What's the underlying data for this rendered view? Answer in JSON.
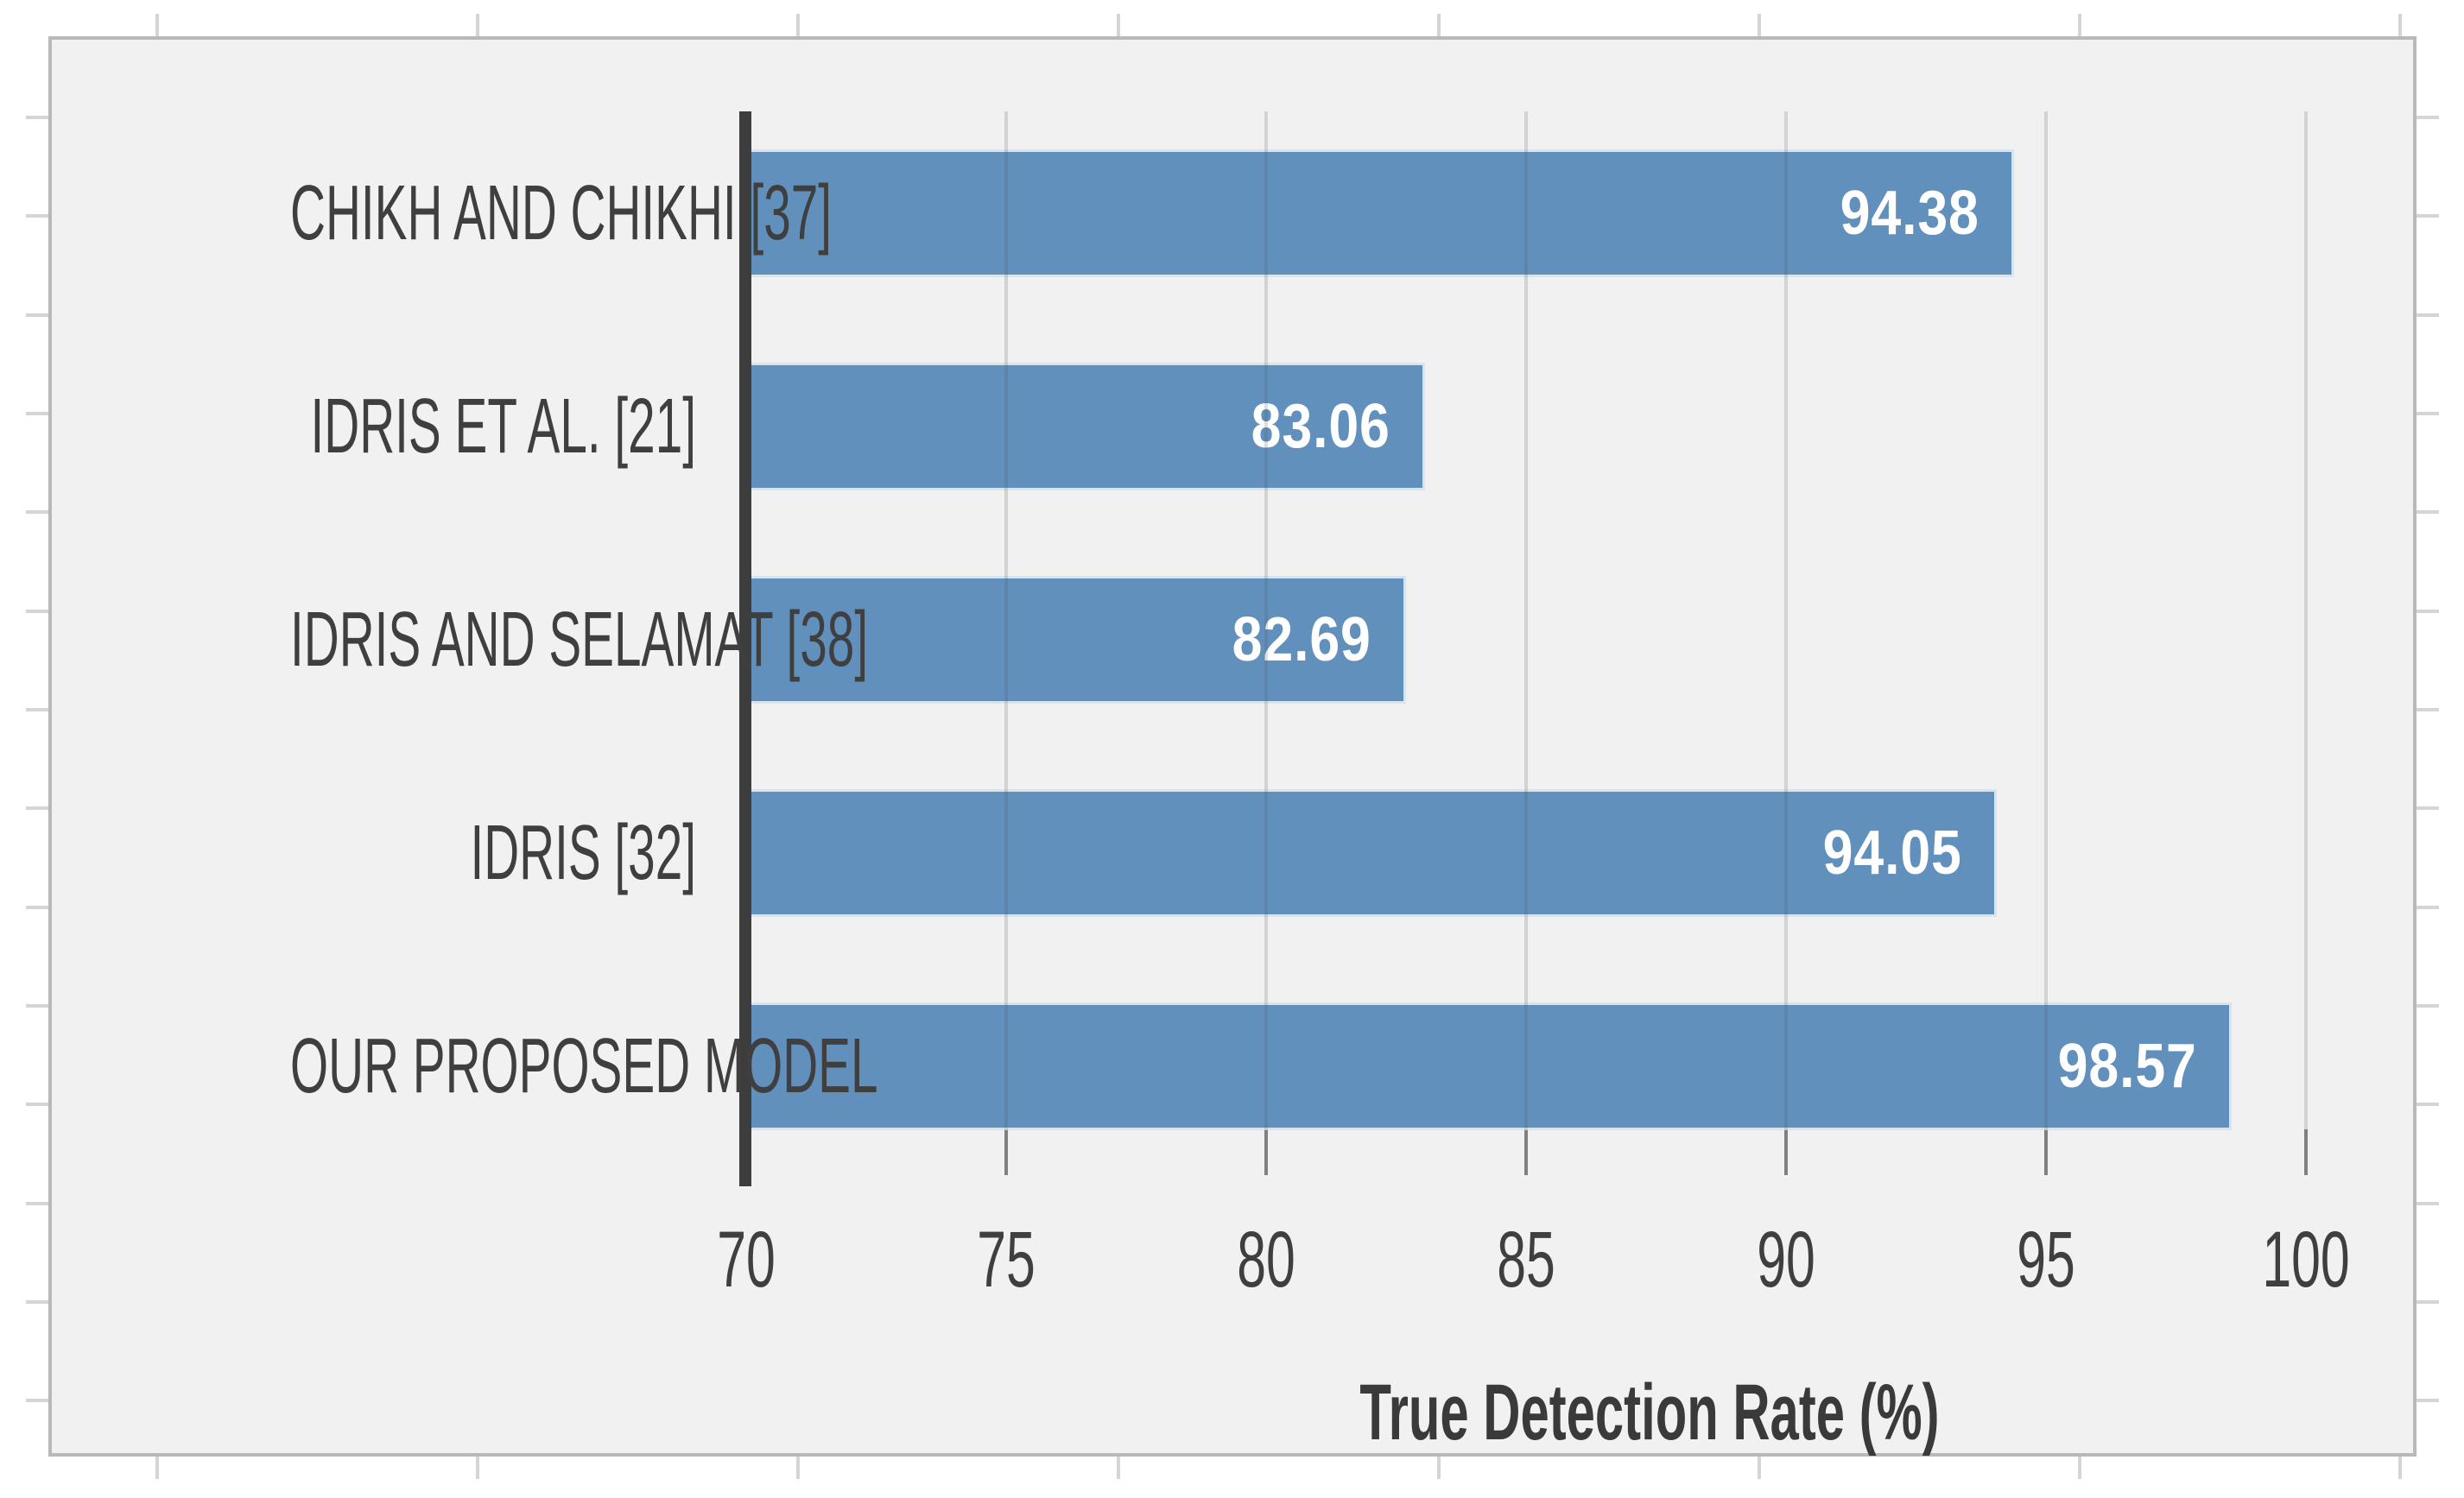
{
  "chart_data": {
    "type": "bar",
    "orientation": "horizontal",
    "title": "",
    "categories": [
      "CHIKH AND CHIKHI [37]",
      "IDRIS ET AL. [21]",
      "IDRIS AND SELAMAT [38]",
      "IDRIS [32]",
      "OUR PROPOSED MODEL"
    ],
    "values": [
      94.38,
      83.06,
      82.69,
      94.05,
      98.57
    ],
    "value_labels": [
      "94.38",
      "83.06",
      "82.69",
      "94.05",
      "98.57"
    ],
    "xlabel": "True Detection Rate (%)",
    "ylabel": "",
    "x_ticks": [
      70,
      75,
      80,
      85,
      90,
      95,
      100
    ],
    "xlim": [
      70,
      100
    ],
    "grid": "vertical-major",
    "legend": "none",
    "data_labels": "inside-end",
    "colors": {
      "bar_fill": "#6190bd",
      "bar_edge": "#d9e4ef",
      "value_text": "#ffffff",
      "label_text": "#3f3f3f",
      "axis_line": "#3d3d3d",
      "tick_mark": "#8c8c8c",
      "gridline": "#d9d9d9",
      "plot_background": "#f1f1f1",
      "chart_border": "#b9b9b9",
      "page_background": "#ffffff",
      "worksheet_gridline": "#d5d5d5"
    }
  }
}
